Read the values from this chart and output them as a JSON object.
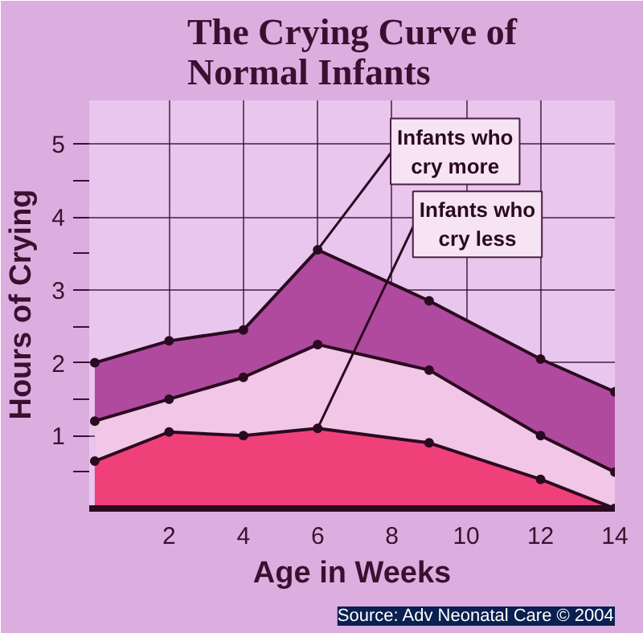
{
  "chart_data": {
    "type": "area",
    "title": "The Crying Curve of\nNormal Infants",
    "xlabel": "Age in Weeks",
    "ylabel": "Hours of Crying",
    "x": [
      0,
      2,
      4,
      6,
      9,
      12,
      14
    ],
    "series": [
      {
        "color": "#b04a9e",
        "values": [
          2.0,
          2.3,
          2.45,
          3.55,
          2.85,
          2.05,
          1.6
        ]
      },
      {
        "color": "#f2c6e6",
        "values": [
          1.2,
          1.5,
          1.8,
          2.25,
          1.9,
          1.0,
          0.5
        ]
      },
      {
        "color": "#f0407a",
        "values": [
          0.65,
          1.05,
          1.0,
          1.1,
          0.9,
          0.4,
          0.0
        ]
      }
    ],
    "xlim": [
      -0.15,
      14
    ],
    "ylim": [
      0,
      5.6
    ],
    "xticks": [
      2,
      4,
      6,
      8,
      10,
      12,
      14
    ],
    "yticks": [
      {
        "value": 0.5,
        "label": null
      },
      1,
      {
        "value": 1.5,
        "label": null
      },
      2,
      {
        "value": 2.5,
        "label": null
      },
      3,
      {
        "value": 3.5,
        "label": null
      },
      4,
      {
        "value": 4.5,
        "label": null
      },
      5
    ],
    "grid": true,
    "marker": "circle",
    "annotations": [
      {
        "text": "Infants who\ncry more",
        "x": 6,
        "y": 3.55
      },
      {
        "text": "Infants who\ncry less",
        "x": 6,
        "y": 1.1
      },
      "Source: Adv Neonatal Care © 2004"
    ]
  }
}
